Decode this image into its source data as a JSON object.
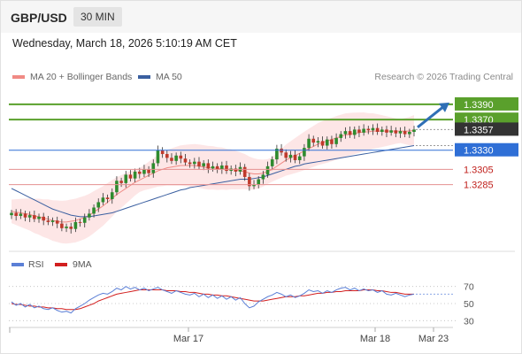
{
  "header": {
    "symbol": "GBP/USD",
    "interval": "30 MIN"
  },
  "datetime": "Wednesday, March 18, 2026 5:10:19 AM CET",
  "legend": {
    "ma20_label": "MA 20 + Bollinger Bands",
    "ma50_label": "MA 50"
  },
  "credit": "Research © 2026 Trading Central",
  "colors": {
    "up": "#2e8b2e",
    "down": "#c0392b",
    "ma20": "#f08a84",
    "ma50": "#3a5fa0",
    "bands": "#fde2e2",
    "target": "#5aa02c",
    "support": "#2f6fd6",
    "resistance": "#e59090",
    "arrow": "#2f6fb5",
    "rsi": "#5b7fd6",
    "rsi_ma": "#d21f1f"
  },
  "chart_data": [
    {
      "type": "candlestick",
      "ylim": [
        1.32,
        1.342
      ],
      "levels": [
        {
          "value": 1.339,
          "label": "1.3390",
          "kind": "target"
        },
        {
          "value": 1.337,
          "label": "1.3370",
          "kind": "target"
        },
        {
          "value": 1.3357,
          "label": "1.3357",
          "kind": "last"
        },
        {
          "value": 1.333,
          "label": "1.3330",
          "kind": "pivot"
        },
        {
          "value": 1.3305,
          "label": "1.3305",
          "kind": "resistance"
        },
        {
          "value": 1.3285,
          "label": "1.3285",
          "kind": "resistance"
        }
      ],
      "x_tick_labels": [
        "Mar 17",
        "Mar 18",
        "Mar 23"
      ],
      "close_series": [
        1.3248,
        1.3244,
        1.3247,
        1.3242,
        1.3245,
        1.324,
        1.3243,
        1.3238,
        1.3236,
        1.3238,
        1.3234,
        1.3228,
        1.323,
        1.3227,
        1.3236,
        1.3235,
        1.3242,
        1.3247,
        1.3255,
        1.3262,
        1.3268,
        1.3266,
        1.3275,
        1.329,
        1.3287,
        1.3298,
        1.3293,
        1.3302,
        1.3299,
        1.3305,
        1.33,
        1.3313,
        1.333,
        1.3325,
        1.332,
        1.3316,
        1.3323,
        1.3319,
        1.3314,
        1.3312,
        1.3315,
        1.3309,
        1.3313,
        1.3306,
        1.3309,
        1.3305,
        1.331,
        1.3303,
        1.3306,
        1.3302,
        1.3308,
        1.3295,
        1.3283,
        1.3285,
        1.3292,
        1.3298,
        1.3309,
        1.3318,
        1.3332,
        1.3327,
        1.332,
        1.3324,
        1.3317,
        1.3322,
        1.3333,
        1.3345,
        1.334,
        1.3342,
        1.3336,
        1.3344,
        1.3338,
        1.3346,
        1.3351,
        1.3355,
        1.335,
        1.3357,
        1.3353,
        1.3358,
        1.3356,
        1.3359,
        1.3354,
        1.3357,
        1.3353,
        1.3356,
        1.3352,
        1.3355,
        1.3351,
        1.3354,
        1.3357
      ],
      "ma20": [
        1.325,
        1.3249,
        1.3248,
        1.3247,
        1.3246,
        1.3244,
        1.3243,
        1.3241,
        1.324,
        1.3238,
        1.3237,
        1.3236,
        1.3236,
        1.3237,
        1.3238,
        1.324,
        1.3242,
        1.3245,
        1.3249,
        1.3253,
        1.3257,
        1.3262,
        1.3267,
        1.3272,
        1.3276,
        1.328,
        1.3284,
        1.3288,
        1.3291,
        1.3294,
        1.3297,
        1.33,
        1.3303,
        1.3305,
        1.3307,
        1.3308,
        1.3309,
        1.331,
        1.331,
        1.331,
        1.331,
        1.3309,
        1.3308,
        1.3307,
        1.3307,
        1.3306,
        1.3306,
        1.3305,
        1.3305,
        1.3304,
        1.3303,
        1.3302,
        1.33,
        1.3299,
        1.3299,
        1.33,
        1.3302,
        1.3305,
        1.3309,
        1.3313,
        1.3317,
        1.332,
        1.3323,
        1.3326,
        1.3329,
        1.3332,
        1.3335,
        1.3338,
        1.334,
        1.3342,
        1.3344,
        1.3346,
        1.3348,
        1.335,
        1.3351,
        1.3352,
        1.3353,
        1.3354,
        1.3354,
        1.3355,
        1.3355,
        1.3355,
        1.3355,
        1.3355,
        1.3355,
        1.3355,
        1.3355,
        1.3355,
        1.3356
      ],
      "ma50": [
        1.328,
        1.3277,
        1.3274,
        1.3271,
        1.3268,
        1.3265,
        1.3262,
        1.3259,
        1.3256,
        1.3253,
        1.3251,
        1.3249,
        1.3247,
        1.3245,
        1.3244,
        1.3243,
        1.3243,
        1.3243,
        1.3244,
        1.3245,
        1.3246,
        1.3247,
        1.3248,
        1.325,
        1.3252,
        1.3254,
        1.3256,
        1.3258,
        1.326,
        1.3262,
        1.3264,
        1.3266,
        1.3268,
        1.327,
        1.3272,
        1.3274,
        1.3276,
        1.3278,
        1.3279,
        1.3281,
        1.3282,
        1.3283,
        1.3284,
        1.3285,
        1.3286,
        1.3287,
        1.3288,
        1.3289,
        1.329,
        1.3291,
        1.3292,
        1.3292,
        1.3292,
        1.3293,
        1.3294,
        1.3295,
        1.3297,
        1.3299,
        1.3301,
        1.3303,
        1.3305,
        1.3307,
        1.3309,
        1.331,
        1.3312,
        1.3313,
        1.3314,
        1.3315,
        1.3316,
        1.3317,
        1.3318,
        1.3319,
        1.332,
        1.3321,
        1.3322,
        1.3323,
        1.3324,
        1.3325,
        1.3326,
        1.3327,
        1.3328,
        1.3329,
        1.333,
        1.3331,
        1.3332,
        1.3333,
        1.3334,
        1.3335,
        1.3336
      ],
      "band_width": 0.0022,
      "projection": {
        "from": 1.336,
        "to": 1.339
      }
    },
    {
      "type": "line",
      "title": "RSI",
      "series": [
        {
          "name": "RSI"
        },
        {
          "name": "9MA"
        }
      ],
      "ylim": [
        20,
        80
      ],
      "y_tick_labels": [
        "70",
        "50",
        "30"
      ],
      "rsi": [
        52,
        48,
        50,
        46,
        49,
        45,
        47,
        44,
        43,
        45,
        42,
        40,
        41,
        39,
        44,
        47,
        50,
        54,
        57,
        60,
        62,
        61,
        64,
        68,
        66,
        70,
        67,
        69,
        66,
        68,
        65,
        67,
        69,
        66,
        64,
        62,
        65,
        63,
        61,
        60,
        62,
        58,
        61,
        57,
        60,
        56,
        59,
        55,
        58,
        54,
        57,
        50,
        45,
        47,
        52,
        55,
        58,
        60,
        63,
        61,
        58,
        60,
        57,
        59,
        62,
        66,
        64,
        65,
        62,
        65,
        63,
        66,
        68,
        69,
        66,
        68,
        65,
        67,
        65,
        66,
        63,
        65,
        61,
        60,
        62,
        60,
        58,
        60,
        61
      ],
      "rsi_ma": [
        50,
        49,
        49,
        48,
        47,
        47,
        46,
        46,
        45,
        45,
        44,
        44,
        43,
        43,
        43,
        44,
        46,
        48,
        50,
        53,
        55,
        57,
        59,
        61,
        62,
        63,
        64,
        65,
        66,
        66,
        66,
        66,
        66,
        66,
        65,
        65,
        65,
        64,
        64,
        63,
        63,
        62,
        61,
        61,
        60,
        60,
        59,
        59,
        58,
        57,
        56,
        55,
        54,
        53,
        53,
        53,
        54,
        55,
        56,
        57,
        58,
        58,
        58,
        59,
        59,
        60,
        61,
        62,
        62,
        63,
        63,
        64,
        64,
        65,
        65,
        65,
        65,
        66,
        66,
        66,
        65,
        65,
        64,
        63,
        63,
        62,
        61,
        61,
        61
      ]
    }
  ]
}
